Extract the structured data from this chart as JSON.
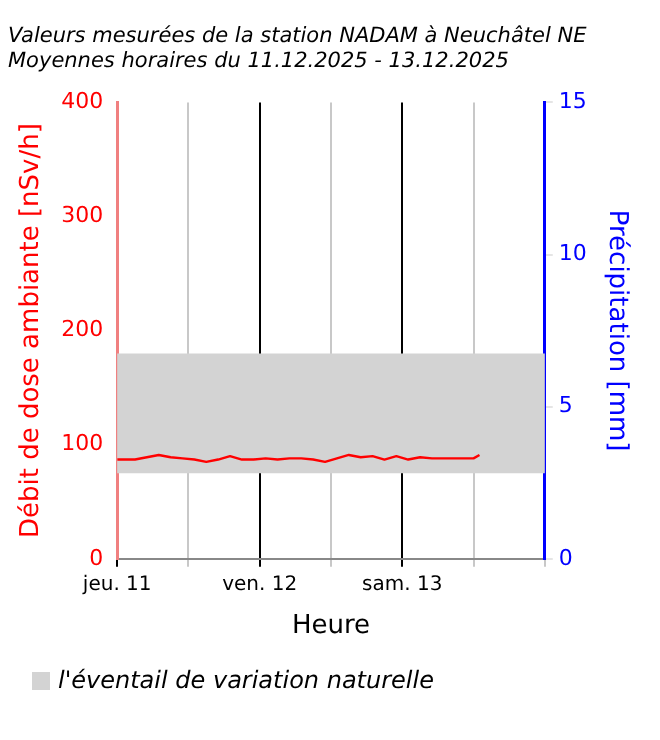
{
  "chart_data": {
    "type": "line",
    "title": "Valeurs mesurées de la station NADAM à Neuchâtel NE",
    "subtitle": "Moyennes horaires du 11.12.2025 - 13.12.2025",
    "xlabel": "Heure",
    "ylabel": "Débit de dose ambiante [nSv/h]",
    "y2label": "Précipitation [mm]",
    "x": [
      "2025-12-11T00:00",
      "2025-12-11T03:00",
      "2025-12-11T05:00",
      "2025-12-11T07:00",
      "2025-12-11T09:00",
      "2025-12-11T11:00",
      "2025-12-11T13:00",
      "2025-12-11T15:00",
      "2025-12-11T17:00",
      "2025-12-11T19:00",
      "2025-12-11T21:00",
      "2025-12-11T23:00",
      "2025-12-12T01:00",
      "2025-12-12T03:00",
      "2025-12-12T05:00",
      "2025-12-12T07:00",
      "2025-12-12T09:00",
      "2025-12-12T11:00",
      "2025-12-12T13:00",
      "2025-12-12T15:00",
      "2025-12-12T17:00",
      "2025-12-12T19:00",
      "2025-12-12T21:00",
      "2025-12-12T23:00",
      "2025-12-13T01:00",
      "2025-12-13T03:00",
      "2025-12-13T05:00",
      "2025-12-13T07:00",
      "2025-12-13T09:00",
      "2025-12-13T11:00",
      "2025-12-13T12:00",
      "2025-12-13T13:00"
    ],
    "series": [
      {
        "color": "#ff0000",
        "values": [
          87,
          87,
          89,
          91,
          89,
          88,
          87,
          85,
          87,
          90,
          87,
          87,
          88,
          87,
          88,
          88,
          87,
          85,
          88,
          91,
          89,
          90,
          87,
          90,
          87,
          89,
          88,
          88,
          88,
          88,
          88,
          91
        ]
      }
    ],
    "xlim": [
      "2025-12-11T00:00",
      "2025-12-14T00:00"
    ],
    "xticks": [
      {
        "value": "2025-12-11T00:00",
        "label": "jeu. 11"
      },
      {
        "value": "2025-12-11T12:00",
        "label": null
      },
      {
        "value": "2025-12-12T00:00",
        "label": "ven. 12"
      },
      {
        "value": "2025-12-12T12:00",
        "label": null
      },
      {
        "value": "2025-12-13T00:00",
        "label": "sam. 13"
      },
      {
        "value": "2025-12-13T12:00",
        "label": null
      },
      {
        "value": "2025-12-14T00:00",
        "label": null
      }
    ],
    "ylim": [
      0,
      400
    ],
    "yticks": [
      0,
      100,
      200,
      300,
      400
    ],
    "y2lim": [
      0,
      15
    ],
    "y2ticks": [
      0,
      5,
      10,
      15
    ],
    "bands": [
      {
        "axis": "y",
        "from": 75,
        "to": 180,
        "label": "l'éventail de variation naturelle",
        "color": "#d3d3d3"
      }
    ],
    "grid": "x",
    "legend": "bottom",
    "marker": "none",
    "line_style": "solid"
  }
}
